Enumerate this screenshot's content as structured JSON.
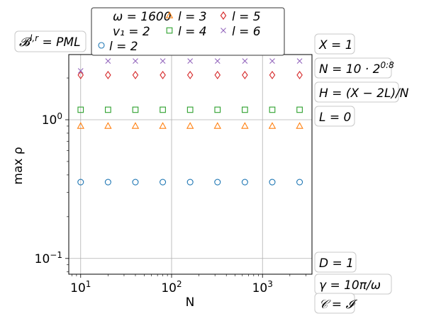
{
  "chart_data": {
    "type": "scatter",
    "title": "",
    "xlabel": "N",
    "ylabel": "max ρ",
    "xscale": "log",
    "yscale": "log",
    "xlim": [
      7.4,
      3500
    ],
    "ylim": [
      0.077,
      2.95
    ],
    "x_ticks": [
      {
        "value": 10,
        "base": "10",
        "exp": "1"
      },
      {
        "value": 100,
        "base": "10",
        "exp": "2"
      },
      {
        "value": 1000,
        "base": "10",
        "exp": "3"
      }
    ],
    "y_ticks": [
      {
        "value": 0.1,
        "base": "10",
        "exp": "−1"
      },
      {
        "value": 1,
        "base": "10",
        "exp": "0"
      }
    ],
    "grid": true,
    "legend_position": "top",
    "legend_header": [
      "ω = 1600",
      "v₁ = 2"
    ],
    "x": [
      10,
      20,
      40,
      80,
      160,
      320,
      640,
      1280,
      2560
    ],
    "series": [
      {
        "name": "l = 2",
        "marker": "circle",
        "color": "#1f77b4",
        "values": [
          0.355,
          0.355,
          0.355,
          0.355,
          0.355,
          0.355,
          0.355,
          0.355,
          0.355
        ]
      },
      {
        "name": "l = 3",
        "marker": "triangle",
        "color": "#ff7f0e",
        "values": [
          0.9,
          0.9,
          0.9,
          0.9,
          0.9,
          0.9,
          0.9,
          0.9,
          0.9
        ]
      },
      {
        "name": "l = 4",
        "marker": "square",
        "color": "#2ca02c",
        "values": [
          1.18,
          1.18,
          1.18,
          1.18,
          1.18,
          1.18,
          1.18,
          1.18,
          1.18
        ]
      },
      {
        "name": "l = 5",
        "marker": "diamond",
        "color": "#d62728",
        "values": [
          2.1,
          2.1,
          2.1,
          2.1,
          2.1,
          2.1,
          2.1,
          2.1,
          2.1
        ]
      },
      {
        "name": "l = 6",
        "marker": "x",
        "color": "#9467bd",
        "values": [
          2.25,
          2.65,
          2.65,
          2.65,
          2.65,
          2.65,
          2.65,
          2.65,
          2.65
        ]
      }
    ],
    "annotations_left": [
      "𝓑^{l,r} = PML"
    ],
    "annotations_right_top": [
      "X = 1",
      "N = 10 · 2^{0:8}",
      "H = (X − 2L)/N",
      "L = 0"
    ],
    "annotations_right_bottom": [
      "D = 1",
      "γ = 10π/ω",
      "𝒞 = 𝓘"
    ]
  }
}
